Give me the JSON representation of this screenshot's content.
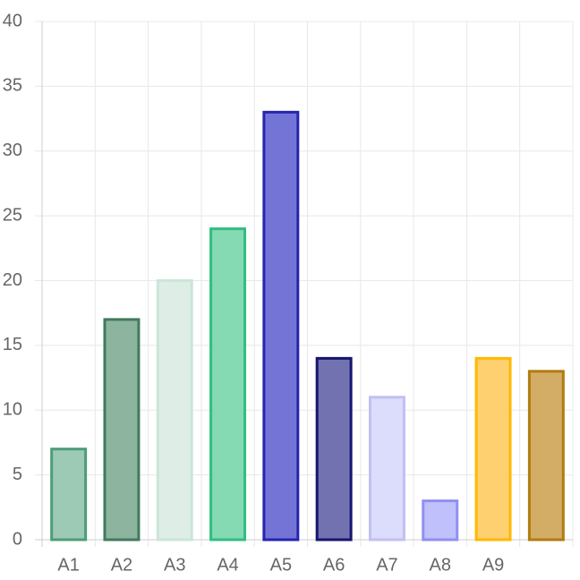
{
  "chart_data": {
    "type": "bar",
    "categories": [
      "A1",
      "A2",
      "A3",
      "A4",
      "A5",
      "A6",
      "A7",
      "A8",
      "A9",
      null
    ],
    "values": [
      7,
      17,
      20,
      24,
      33,
      14,
      11,
      3,
      14,
      13
    ],
    "colors": [
      "#9ccab5",
      "#8db49f",
      "#deeee6",
      "#85d9b3",
      "#7474d6",
      "#7272b0",
      "#dcdcfc",
      "#c0c0fc",
      "#ffd070",
      "#d3ad66"
    ],
    "border_colors": [
      "#4d9c78",
      "#417a5e",
      "#cbe6d8",
      "#2fbf7f",
      "#2424b0",
      "#151570",
      "#c0c0f2",
      "#9090f0",
      "#ffb800",
      "#b07c10"
    ],
    "ylim": [
      0,
      40
    ],
    "yticks": [
      0,
      5,
      10,
      15,
      20,
      25,
      30,
      35,
      40
    ],
    "grid": true
  }
}
